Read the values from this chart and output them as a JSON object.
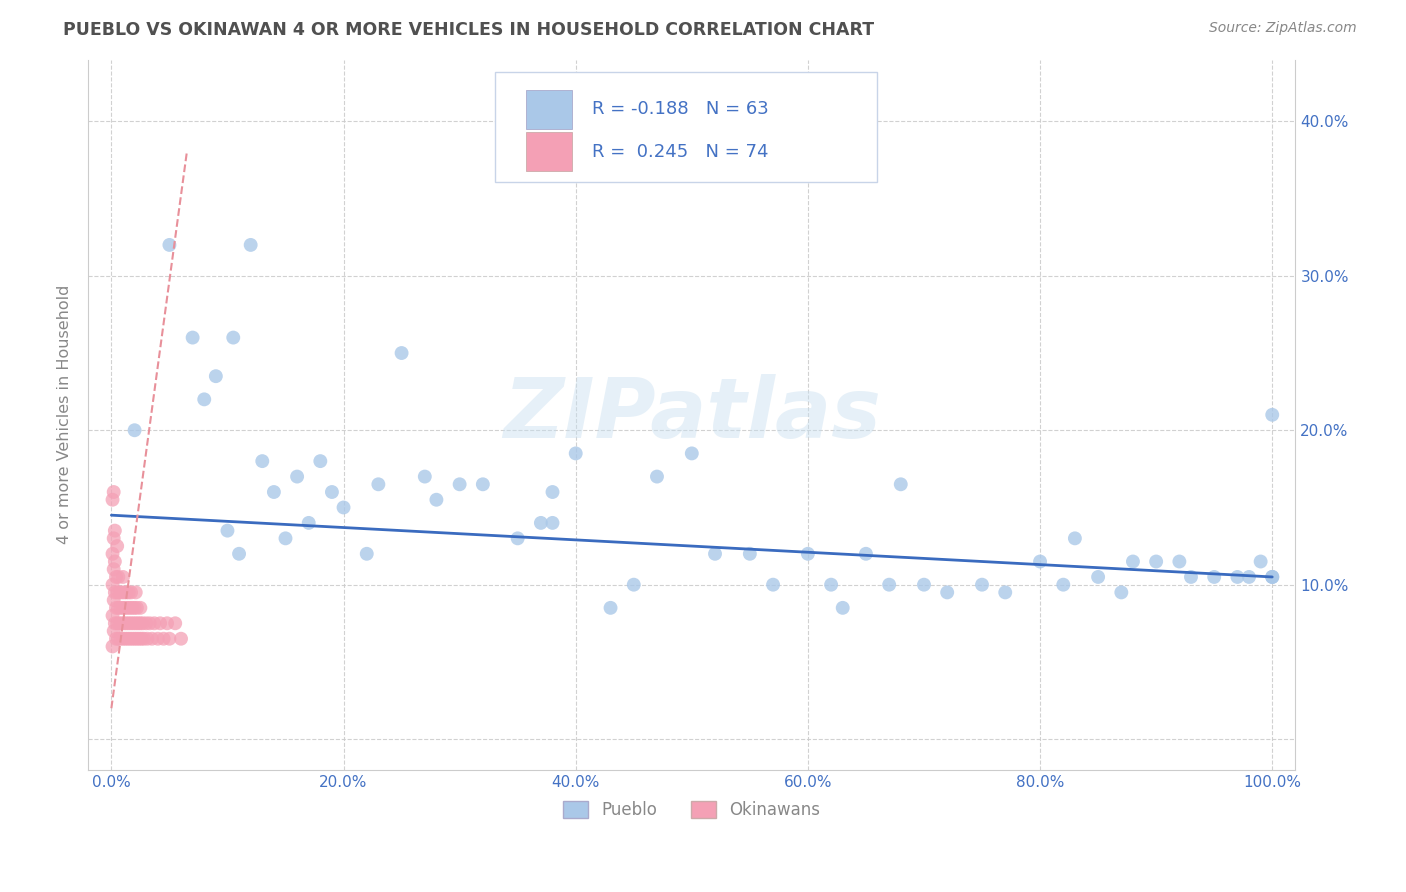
{
  "title": "PUEBLO VS OKINAWAN 4 OR MORE VEHICLES IN HOUSEHOLD CORRELATION CHART",
  "source_text": "Source: ZipAtlas.com",
  "ylabel": "4 or more Vehicles in Household",
  "watermark": "ZIPatlas",
  "xlim": [
    -0.02,
    1.02
  ],
  "ylim": [
    -0.02,
    0.44
  ],
  "xticks": [
    0.0,
    0.2,
    0.4,
    0.6,
    0.8,
    1.0
  ],
  "yticks": [
    0.0,
    0.1,
    0.2,
    0.3,
    0.4
  ],
  "xtick_labels": [
    "0.0%",
    "20.0%",
    "40.0%",
    "60.0%",
    "80.0%",
    "100.0%"
  ],
  "ytick_labels_right": [
    "",
    "10.0%",
    "20.0%",
    "30.0%",
    "40.0%"
  ],
  "pueblo_R": -0.188,
  "pueblo_N": 63,
  "okinawan_R": 0.245,
  "okinawan_N": 74,
  "pueblo_color": "#aac8e8",
  "okinawan_color": "#f4a0b5",
  "pueblo_line_color": "#3a6bbf",
  "okinawan_line_color": "#e8909a",
  "background_color": "#ffffff",
  "grid_color": "#cccccc",
  "title_color": "#505050",
  "axis_label_color": "#888888",
  "tick_label_color": "#4472c4",
  "legend_box_color": "#f0f4ff",
  "legend_border_color": "#c8d4e8",
  "pueblo_x": [
    0.02,
    0.05,
    0.07,
    0.08,
    0.09,
    0.1,
    0.105,
    0.11,
    0.12,
    0.13,
    0.14,
    0.15,
    0.16,
    0.17,
    0.18,
    0.19,
    0.2,
    0.22,
    0.23,
    0.25,
    0.27,
    0.28,
    0.3,
    0.32,
    0.35,
    0.37,
    0.38,
    0.38,
    0.4,
    0.43,
    0.45,
    0.47,
    0.5,
    0.52,
    0.55,
    0.57,
    0.6,
    0.62,
    0.63,
    0.65,
    0.67,
    0.68,
    0.7,
    0.72,
    0.75,
    0.77,
    0.8,
    0.82,
    0.83,
    0.85,
    0.87,
    0.88,
    0.9,
    0.92,
    0.93,
    0.95,
    0.97,
    0.98,
    0.99,
    1.0,
    1.0,
    1.0,
    1.0
  ],
  "pueblo_y": [
    0.2,
    0.32,
    0.26,
    0.22,
    0.235,
    0.135,
    0.26,
    0.12,
    0.32,
    0.18,
    0.16,
    0.13,
    0.17,
    0.14,
    0.18,
    0.16,
    0.15,
    0.12,
    0.165,
    0.25,
    0.17,
    0.155,
    0.165,
    0.165,
    0.13,
    0.14,
    0.14,
    0.16,
    0.185,
    0.085,
    0.1,
    0.17,
    0.185,
    0.12,
    0.12,
    0.1,
    0.12,
    0.1,
    0.085,
    0.12,
    0.1,
    0.165,
    0.1,
    0.095,
    0.1,
    0.095,
    0.115,
    0.1,
    0.13,
    0.105,
    0.095,
    0.115,
    0.115,
    0.115,
    0.105,
    0.105,
    0.105,
    0.105,
    0.115,
    0.105,
    0.21,
    0.105,
    0.105
  ],
  "okinawan_x": [
    0.001,
    0.001,
    0.001,
    0.001,
    0.001,
    0.002,
    0.002,
    0.002,
    0.002,
    0.002,
    0.003,
    0.003,
    0.003,
    0.003,
    0.004,
    0.004,
    0.004,
    0.005,
    0.005,
    0.005,
    0.006,
    0.006,
    0.006,
    0.007,
    0.007,
    0.008,
    0.008,
    0.009,
    0.009,
    0.01,
    0.01,
    0.01,
    0.011,
    0.011,
    0.012,
    0.012,
    0.013,
    0.013,
    0.014,
    0.014,
    0.015,
    0.015,
    0.016,
    0.016,
    0.017,
    0.017,
    0.018,
    0.018,
    0.019,
    0.02,
    0.02,
    0.021,
    0.021,
    0.022,
    0.022,
    0.023,
    0.024,
    0.025,
    0.025,
    0.026,
    0.027,
    0.028,
    0.03,
    0.031,
    0.033,
    0.035,
    0.037,
    0.04,
    0.042,
    0.045,
    0.048,
    0.05,
    0.055,
    0.06
  ],
  "okinawan_y": [
    0.06,
    0.08,
    0.1,
    0.12,
    0.155,
    0.07,
    0.09,
    0.11,
    0.13,
    0.16,
    0.075,
    0.095,
    0.115,
    0.135,
    0.065,
    0.085,
    0.105,
    0.075,
    0.095,
    0.125,
    0.065,
    0.085,
    0.105,
    0.075,
    0.095,
    0.065,
    0.085,
    0.075,
    0.095,
    0.065,
    0.085,
    0.105,
    0.075,
    0.095,
    0.065,
    0.085,
    0.075,
    0.095,
    0.065,
    0.085,
    0.075,
    0.095,
    0.065,
    0.085,
    0.075,
    0.095,
    0.065,
    0.085,
    0.075,
    0.065,
    0.085,
    0.075,
    0.095,
    0.065,
    0.085,
    0.075,
    0.065,
    0.075,
    0.085,
    0.065,
    0.075,
    0.065,
    0.075,
    0.065,
    0.075,
    0.065,
    0.075,
    0.065,
    0.075,
    0.065,
    0.075,
    0.065,
    0.075,
    0.065
  ],
  "pueblo_trend_x": [
    0.0,
    1.0
  ],
  "pueblo_trend_y": [
    0.145,
    0.105
  ],
  "okinawan_trend_x": [
    0.0,
    0.065
  ],
  "okinawan_trend_y": [
    0.02,
    0.38
  ]
}
